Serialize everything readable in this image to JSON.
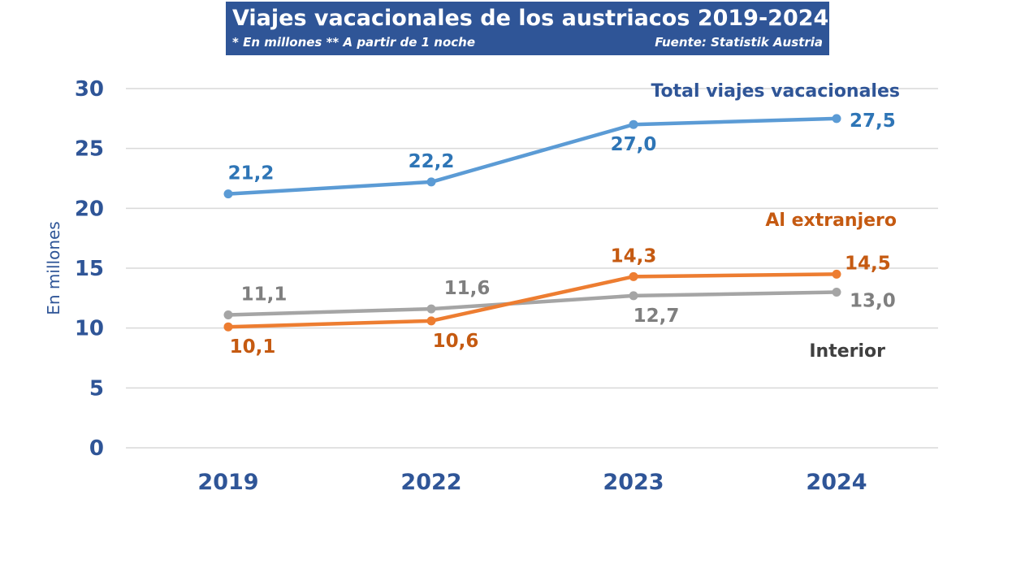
{
  "header": {
    "title": "Viajes vacacionales de los austriacos 2019-2024",
    "note": "* En millones ** A partir de 1 noche",
    "source": "Fuente: Statistik Austria"
  },
  "chart_data": {
    "type": "line",
    "title": "Viajes vacacionales de los austriacos 2019-2024",
    "ylabel": "En millones",
    "xlabel": "",
    "categories": [
      "2019",
      "2022",
      "2023",
      "2024"
    ],
    "ylim": [
      0,
      30
    ],
    "yticks": [
      0,
      5,
      10,
      15,
      20,
      25,
      30
    ],
    "grid": true,
    "series": [
      {
        "name": "Total viajes vacacionales",
        "color": "#5B9BD5",
        "label_color": "#2E75B6",
        "values": [
          21.2,
          22.2,
          27.0,
          27.5
        ],
        "labels": [
          "21,2",
          "22,2",
          "27,0",
          "27,5"
        ],
        "label_pos": [
          "above",
          "above",
          "below",
          "right"
        ]
      },
      {
        "name": "Al extranjero",
        "color": "#ED7D31",
        "label_color": "#C55A11",
        "values": [
          10.1,
          10.6,
          14.3,
          14.5
        ],
        "labels": [
          "10,1",
          "10,6",
          "14,3",
          "14,5"
        ],
        "label_pos": [
          "below",
          "below",
          "above",
          "right-up"
        ]
      },
      {
        "name": "Interior",
        "color": "#A5A5A5",
        "label_color": "#7F7F7F",
        "values": [
          11.1,
          11.6,
          12.7,
          13.0
        ],
        "labels": [
          "11,1",
          "11,6",
          "12,7",
          "13,0"
        ],
        "label_pos": [
          "above",
          "above",
          "below",
          "right-down"
        ]
      }
    ],
    "series_name_colors": {
      "Total viajes vacacionales": "#2F5597",
      "Al extranjero": "#C55A11",
      "Interior": "#404040"
    },
    "axis_text_color": "#2F5597"
  }
}
